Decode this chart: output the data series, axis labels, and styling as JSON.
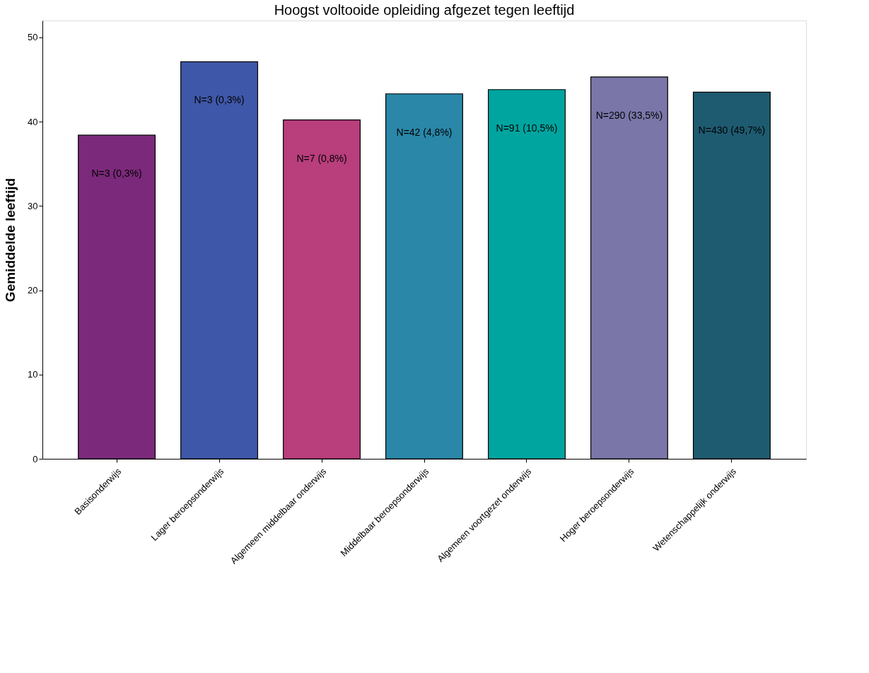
{
  "chart_data": {
    "type": "bar",
    "title": "Hoogst voltooide opleiding afgezet tegen leeftijd",
    "ylabel": "Gemiddelde  leeftijd",
    "categories": [
      "Basisonderwijs",
      "Lager beroepsonderwijs",
      "Algemeen middelbaar onderwijs",
      "Middelbaar beroepsonderwijs",
      "Algemeen voortgezet onderwijs",
      "Hoger beroepsonderwijs",
      "Wetenschappelijk onderwijs"
    ],
    "values": [
      38.4,
      47.1,
      40.2,
      43.3,
      43.8,
      45.3,
      43.5
    ],
    "colors": [
      "#7b2a7b",
      "#3f57a8",
      "#b83e7c",
      "#2a87a8",
      "#00a5a0",
      "#7a76a8",
      "#1e5b70"
    ],
    "ylim": [
      0,
      52
    ],
    "yticks": [
      0,
      10,
      20,
      30,
      40,
      50
    ],
    "grid": false,
    "annotations": [
      "N=3 (0,3%)",
      "N=3 (0,3%)",
      "N=7 (0,8%)",
      "N=42 (4,8%)",
      "N=91 (10,5%)",
      "N=290 (33,5%)",
      "N=430 (49,7%)"
    ]
  }
}
